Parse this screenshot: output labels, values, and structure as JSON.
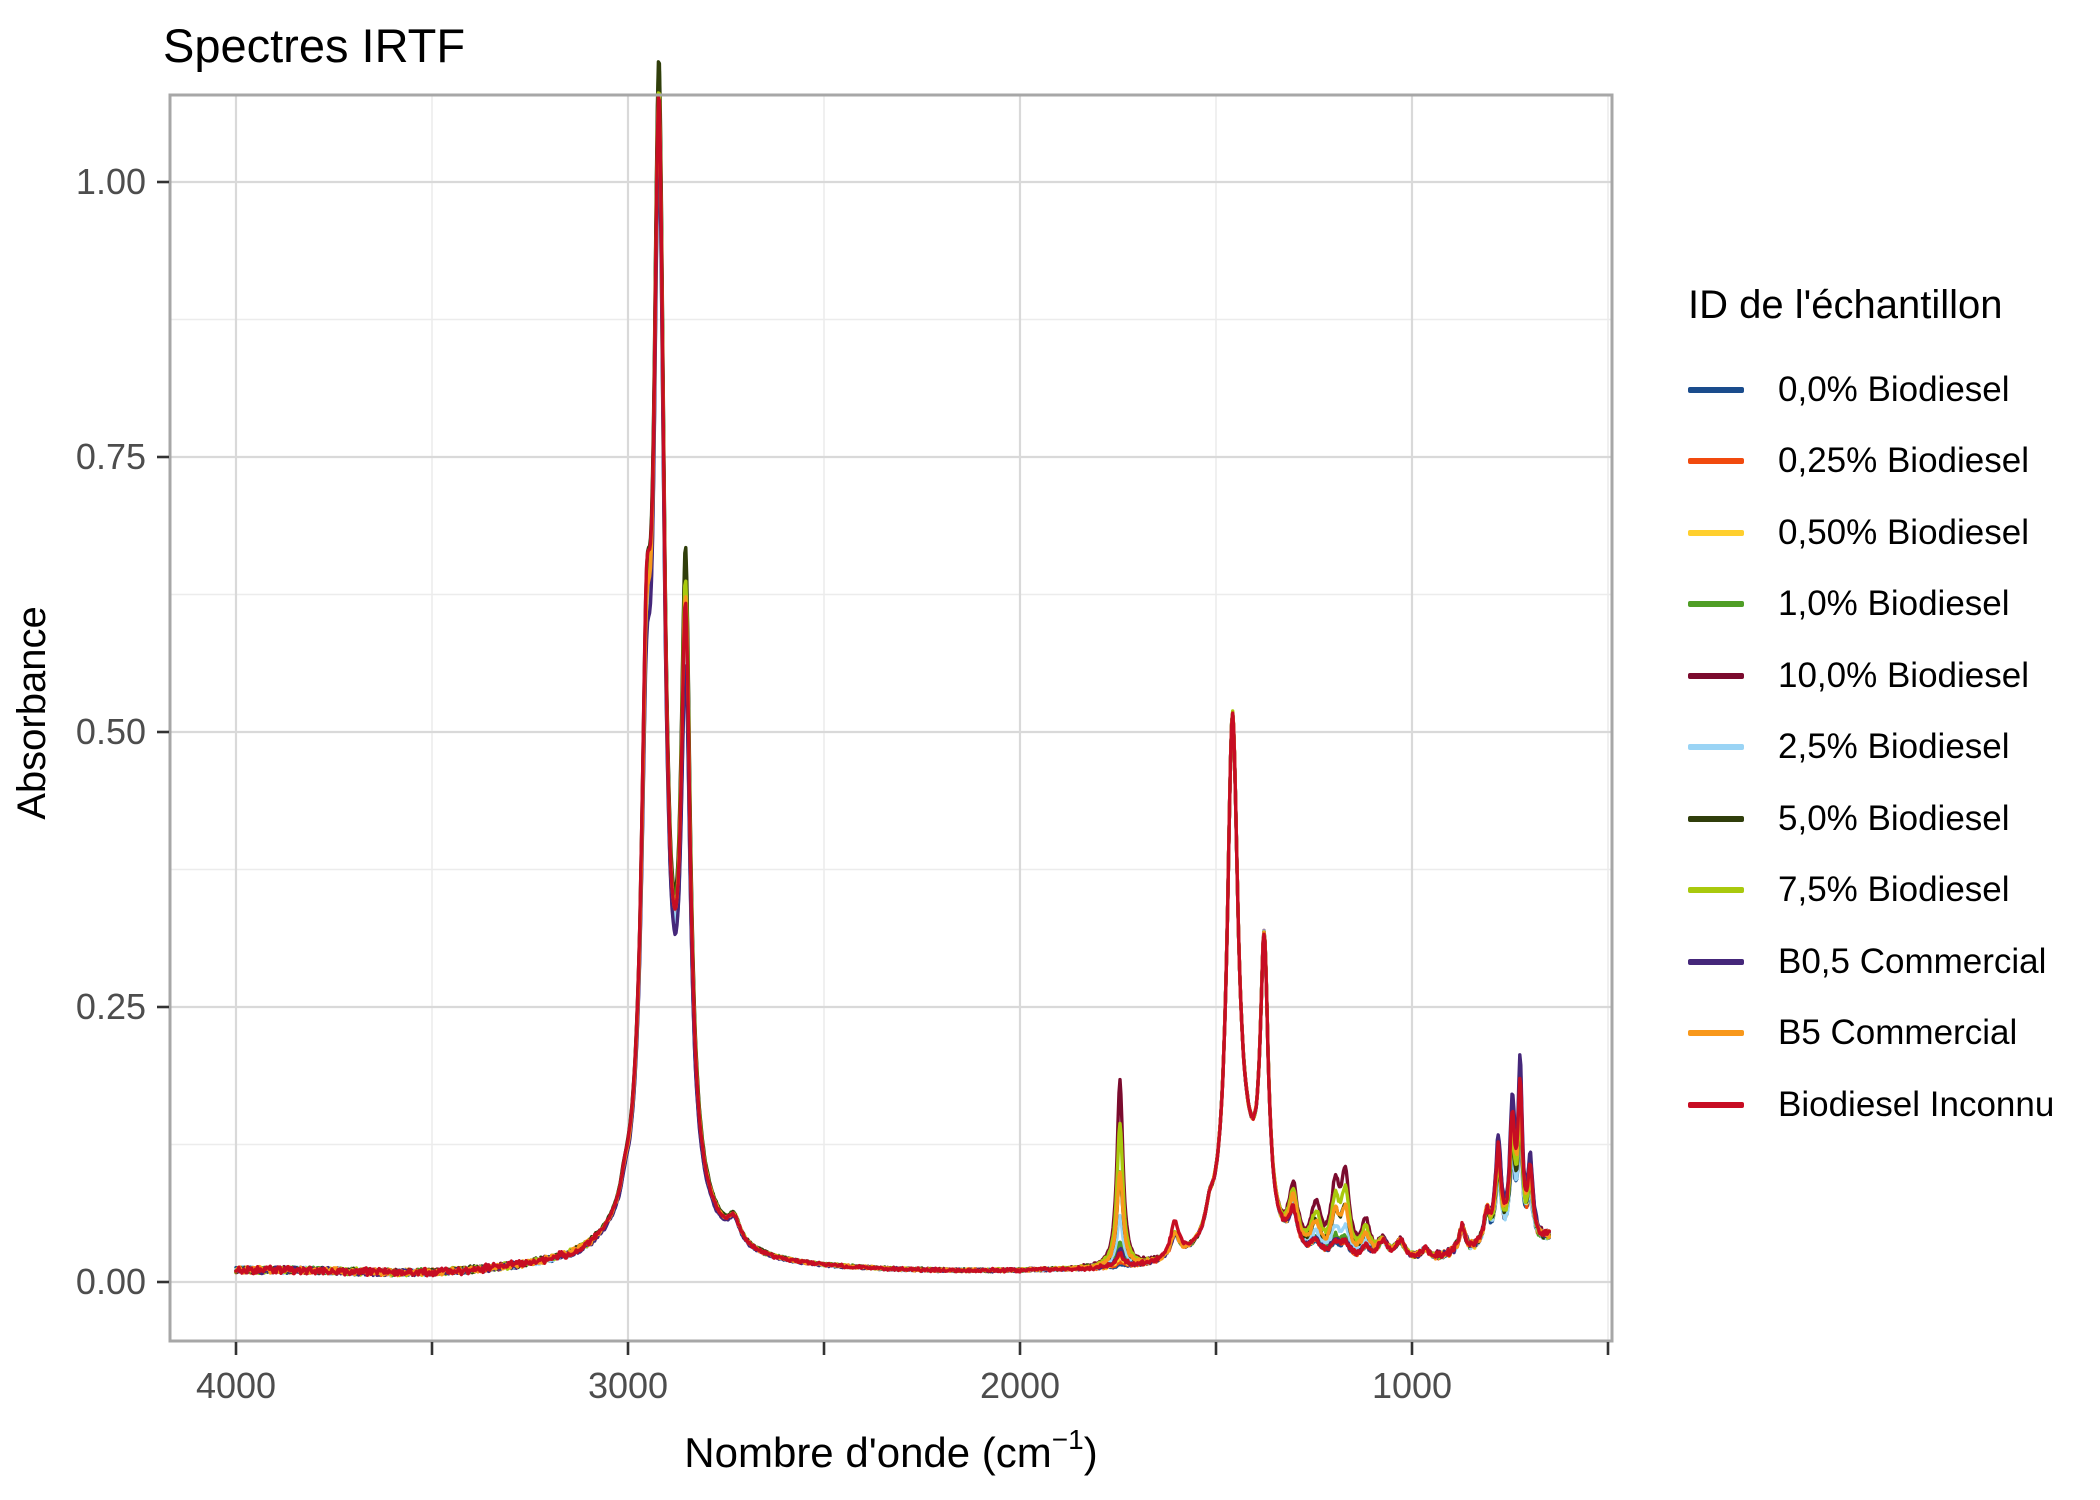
{
  "title": "Spectres IRTF",
  "axes": {
    "x": {
      "title_prefix": "Nombre d'onde (cm",
      "title_sup": "−1",
      "title_suffix": ")",
      "tick_labels": [
        "4000",
        "3000",
        "2000",
        "1000"
      ],
      "tick_values": [
        4000,
        3000,
        2000,
        1000
      ],
      "minor_tick_values": [
        3500,
        2500,
        1500,
        500
      ],
      "reversed": true
    },
    "y": {
      "title": "Absorbance",
      "tick_labels": [
        "1.00",
        "0.75",
        "0.50",
        "0.25",
        "0.00"
      ],
      "tick_values": [
        1.0,
        0.75,
        0.5,
        0.25,
        0.0
      ],
      "minor_tick_values": [
        0.875,
        0.625,
        0.375,
        0.125
      ]
    }
  },
  "legend": {
    "title": "ID de l'échantillon"
  },
  "style": {
    "background": "#ffffff",
    "panel_border": "#a7a7a7",
    "grid_major": "#d9d9d9",
    "grid_minor": "#ececec",
    "tick_mark": "#333333",
    "tick_label": "#4d4d4d",
    "title_color": "#000000"
  },
  "chart_data": {
    "type": "line",
    "title": "Spectres IRTF",
    "xlabel": "Nombre d'onde (cm⁻¹)",
    "ylabel": "Absorbance",
    "xlim": [
      4168,
      495
    ],
    "x_reversed": true,
    "ylim": [
      -0.054,
      1.077
    ],
    "x_data_range": [
      4000,
      650
    ],
    "grid": "major+minor",
    "legend_position": "right",
    "key_peaks_cm1": {
      "ch_stretch_shoulder": 2953,
      "ch_stretch_main": 2921,
      "ch_stretch_second": 2853,
      "aldehyde_ch": 2729,
      "ester_carbonyl": 1745,
      "aromatic": 1605,
      "ch2_bend": 1458,
      "ch3_bend": 1377,
      "ester_co": [
        1245,
        1196,
        1170
      ],
      "ch2_rock_cluster": [
        780,
        744,
        724
      ]
    },
    "key_readings": {
      "max_absorbance_2921": 1.02,
      "valley_2886": 0.37,
      "peak_2853": 0.66,
      "peak_1458": 0.48,
      "peak_1377": 0.28,
      "carbonyl_1745_max_10pct": 0.18,
      "rock_724_max_B05": 0.16,
      "baseline": 0.01
    },
    "noise_amplitude": 0.003,
    "series": [
      {
        "label": "0,0% Biodiesel",
        "color": "#1a4c8c",
        "seed": 1,
        "ch": 0.958,
        "p2": 0.455,
        "sh": 0.345,
        "carbonyl": 0.002,
        "ester": 0.0,
        "aromatic": 0.02,
        "rock": 0.088,
        "amp": 1.0,
        "carbonyl_A_1745": 0.012
      },
      {
        "label": "0,25% Biodiesel",
        "color": "#f14a0e",
        "seed": 2,
        "ch": 0.982,
        "p2": 0.48,
        "sh": 0.35,
        "carbonyl": 0.005,
        "ester": 0.025,
        "aromatic": 0.02,
        "rock": 0.094,
        "amp": 1.0,
        "carbonyl_A_1745": 0.016
      },
      {
        "label": "0,50% Biodiesel",
        "color": "#ffcf2e",
        "seed": 3,
        "ch": 1.004,
        "p2": 0.505,
        "sh": 0.355,
        "carbonyl": 0.009,
        "ester": 0.05,
        "aromatic": 0.02,
        "rock": 0.1,
        "amp": 1.0,
        "carbonyl_A_1745": 0.02
      },
      {
        "label": "1,0% Biodiesel",
        "color": "#4f9e26",
        "seed": 4,
        "ch": 1.016,
        "p2": 0.51,
        "sh": 0.355,
        "carbonyl": 0.022,
        "ester": 0.1,
        "aromatic": 0.02,
        "rock": 0.096,
        "amp": 1.0,
        "carbonyl_A_1745": 0.034
      },
      {
        "label": "10,0% Biodiesel",
        "color": "#7b0b2e",
        "seed": 5,
        "ch": 0.993,
        "p2": 0.495,
        "sh": 0.35,
        "carbonyl": 0.17,
        "ester": 1.0,
        "aromatic": 0.02,
        "rock": 0.138,
        "amp": 1.0,
        "carbonyl_A_1745": 0.181
      },
      {
        "label": "2,5% Biodiesel",
        "color": "#9ad4f5",
        "seed": 6,
        "ch": 0.972,
        "p2": 0.47,
        "sh": 0.345,
        "carbonyl": 0.046,
        "ester": 0.25,
        "aromatic": 0.02,
        "rock": 0.09,
        "amp": 1.0,
        "carbonyl_A_1745": 0.057
      },
      {
        "label": "5,0% Biodiesel",
        "color": "#303e0b",
        "seed": 7,
        "ch": 1.022,
        "p2": 0.515,
        "sh": 0.36,
        "carbonyl": 0.086,
        "ester": 0.5,
        "aromatic": 0.02,
        "rock": 0.102,
        "amp": 1.0,
        "carbonyl_A_1745": 0.097
      },
      {
        "label": "7,5% Biodiesel",
        "color": "#a9c90d",
        "seed": 8,
        "ch": 0.998,
        "p2": 0.5,
        "sh": 0.35,
        "carbonyl": 0.13,
        "ester": 0.75,
        "aromatic": 0.02,
        "rock": 0.108,
        "amp": 1.0,
        "carbonyl_A_1745": 0.141
      },
      {
        "label": "B0,5 Commercial",
        "color": "#45277a",
        "seed": 9,
        "ch": 0.952,
        "p2": 0.45,
        "sh": 0.34,
        "carbonyl": 0.016,
        "ester": 0.05,
        "aromatic": 0.02,
        "rock": 0.148,
        "amp": 1.0,
        "carbonyl_A_1745": 0.027
      },
      {
        "label": "B5 Commercial",
        "color": "#f8981b",
        "seed": 10,
        "ch": 0.99,
        "p2": 0.49,
        "sh": 0.35,
        "carbonyl": 0.086,
        "ester": 0.5,
        "aromatic": 0.02,
        "rock": 0.122,
        "amp": 1.0,
        "carbonyl_A_1745": 0.097
      },
      {
        "label": "Biodiesel Inconnu",
        "color": "#c70d23",
        "seed": 11,
        "ch": 0.988,
        "p2": 0.485,
        "sh": 0.385,
        "carbonyl": 0.012,
        "ester": 0.03,
        "aromatic": 0.032,
        "rock": 0.132,
        "amp": 1.25,
        "carbonyl_A_1745": 0.022
      }
    ]
  }
}
